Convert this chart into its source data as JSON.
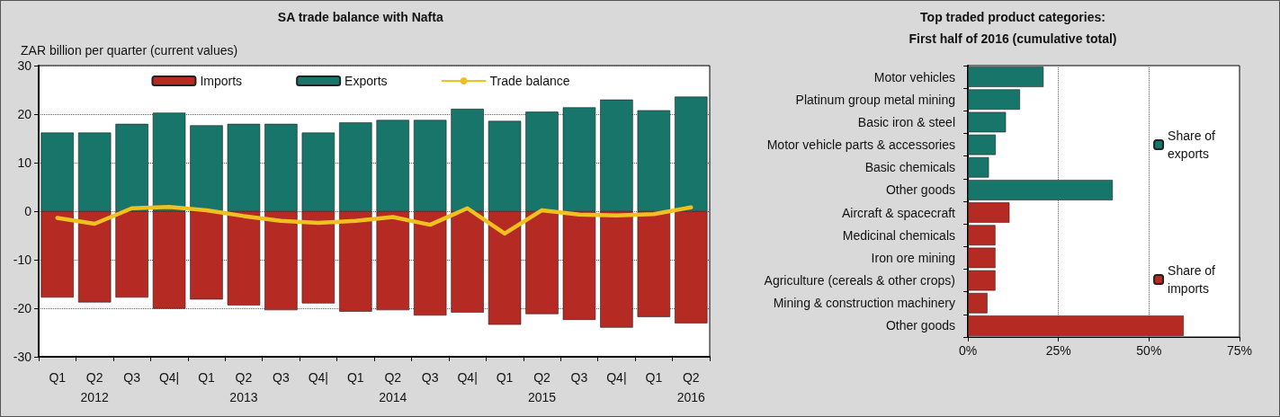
{
  "chart_data": [
    {
      "type": "bar",
      "title": "SA trade balance with Nafta",
      "ylabel": "ZAR billion per quarter (current values)",
      "categories": [
        "Q1",
        "Q2\n2012",
        "Q3",
        "Q4|",
        "Q1",
        "Q2\n2013",
        "Q3",
        "Q4|",
        "Q1",
        "Q2\n2014",
        "Q3",
        "Q4|",
        "Q1",
        "Q2\n2015",
        "Q3",
        "Q4|",
        "Q1",
        "Q2\n2016"
      ],
      "series": [
        {
          "name": "Imports",
          "color": "#b52a22",
          "values": [
            -17.8,
            -18.8,
            -17.8,
            -20.1,
            -18.2,
            -19.4,
            -20.4,
            -19.0,
            -20.7,
            -20.4,
            -21.5,
            -20.9,
            -23.4,
            -21.2,
            -22.4,
            -24.0,
            -21.8,
            -23.1
          ]
        },
        {
          "name": "Exports",
          "color": "#17756a",
          "values": [
            16.2,
            16.2,
            18.0,
            20.3,
            17.7,
            18.0,
            18.0,
            16.2,
            18.3,
            18.8,
            18.8,
            21.1,
            18.6,
            20.5,
            21.4,
            23.0,
            20.8,
            23.6
          ]
        },
        {
          "name": "Trade balance",
          "type": "line",
          "color": "#f0c020",
          "values": [
            -1.4,
            -2.6,
            0.6,
            0.9,
            0.2,
            -1.0,
            -2.0,
            -2.4,
            -2.0,
            -1.2,
            -2.8,
            0.6,
            -4.6,
            0.2,
            -0.7,
            -0.9,
            -0.6,
            0.8
          ]
        }
      ],
      "ylim": [
        -30,
        30
      ],
      "yticks": [
        -30,
        -20,
        -10,
        0,
        10,
        20,
        30
      ],
      "grid": "y",
      "legend": "top",
      "marker": "none",
      "stacked": true
    },
    {
      "type": "bar",
      "orientation": "horizontal",
      "title": "Top traded product categories:",
      "subtitle": "First half of 2016 (cumulative total)",
      "categories": [
        "Motor vehicles",
        "Platinum group metal mining",
        "Basic iron & steel",
        "Motor vehicle parts & accessories",
        "Basic chemicals",
        "Other goods",
        "Aircraft & spacecraft",
        "Medicinal chemicals",
        "Iron ore mining",
        "Agriculture (cereals & other crops)",
        "Mining & construction machinery",
        "Other goods"
      ],
      "series": [
        {
          "name": "Share of\nexports",
          "color": "#17756a",
          "values": [
            20.9,
            14.4,
            10.5,
            7.7,
            5.8,
            40.0,
            null,
            null,
            null,
            null,
            null,
            null
          ]
        },
        {
          "name": "Share of\nimports",
          "color": "#b52a22",
          "values": [
            null,
            null,
            null,
            null,
            null,
            null,
            11.5,
            7.6,
            7.6,
            7.6,
            5.4,
            59.6
          ]
        }
      ],
      "xlim": [
        0,
        75
      ],
      "xticks": [
        {
          "value": 0,
          "label": "0%"
        },
        {
          "value": 25,
          "label": "25%"
        },
        {
          "value": 50,
          "label": "50%"
        },
        {
          "value": 75,
          "label": "75%"
        }
      ],
      "grid": "x",
      "legend": "right"
    }
  ]
}
